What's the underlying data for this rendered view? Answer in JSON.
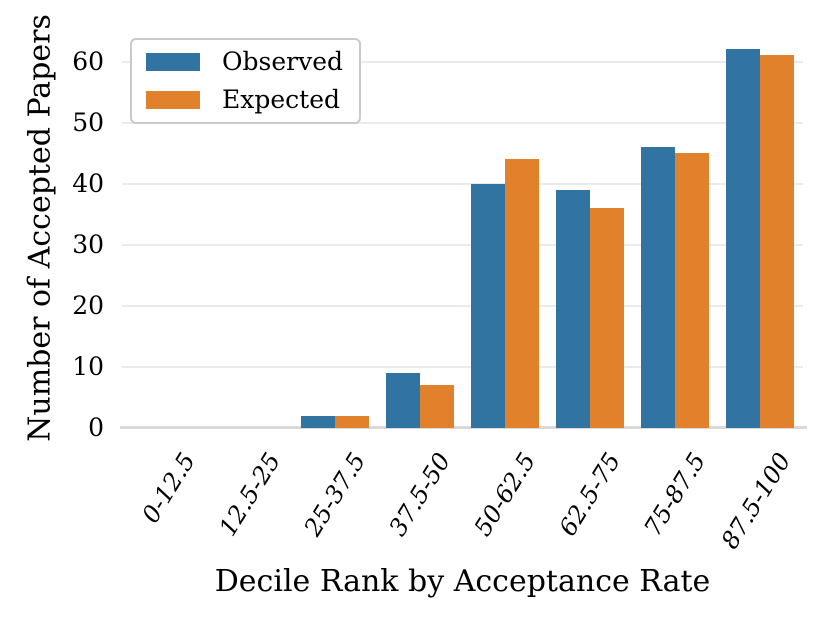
{
  "chart_data": {
    "type": "bar",
    "title": "",
    "xlabel": "Decile Rank by Acceptance Rate",
    "ylabel": "Number of Accepted Papers",
    "categories": [
      "0-12.5",
      "12.5-25",
      "25-37.5",
      "37.5-50",
      "50-62.5",
      "62.5-75",
      "75-87.5",
      "87.5-100"
    ],
    "series": [
      {
        "name": "Observed",
        "color": "#3274a1",
        "values": [
          0,
          0,
          2,
          9,
          40,
          39,
          46,
          62
        ]
      },
      {
        "name": "Expected",
        "color": "#e1812c",
        "values": [
          0,
          0,
          2,
          7,
          44,
          36,
          45,
          61
        ]
      }
    ],
    "ylim": [
      0,
      65
    ],
    "yticks": [
      0,
      10,
      20,
      30,
      40,
      50,
      60
    ],
    "grid": "horizontal-only",
    "grid_color": "#ebebeb",
    "axis_line_color": "#d9d9d9",
    "background_color": "#ffffff",
    "text_color": "#000000",
    "legend_position": "upper-left",
    "xtick_style": "italic, rotated"
  }
}
